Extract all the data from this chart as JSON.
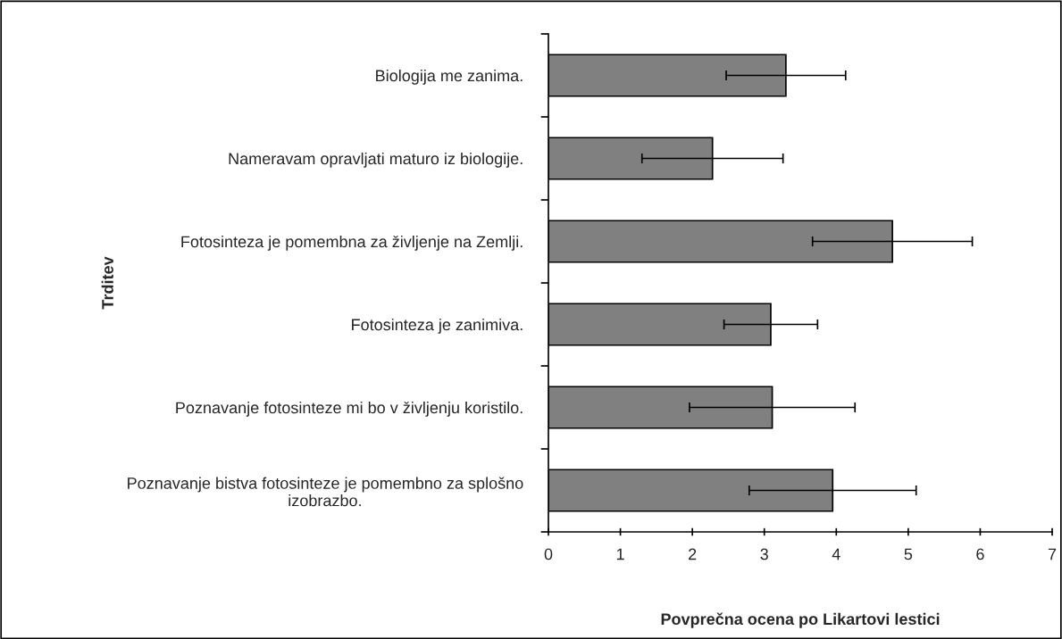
{
  "chart_data": {
    "type": "bar",
    "orientation": "horizontal",
    "categories": [
      "Biologija me zanima.",
      "Nameravam opravljati maturo iz biologije.",
      "Fotosinteza je pomembna za življenje na Zemlji.",
      "Fotosinteza je zanimiva.",
      "Poznavanje fotosinteze mi bo v življenju koristilo.",
      "Poznavanje bistva fotosinteze je pomembno za splošno\nizobrazbo."
    ],
    "values": [
      3.3,
      2.28,
      4.78,
      3.09,
      3.11,
      3.95
    ],
    "errors": [
      0.83,
      0.98,
      1.11,
      0.65,
      1.15,
      1.16
    ],
    "color": "#808080",
    "xlim": [
      0,
      7
    ],
    "xticks": [
      0,
      1,
      2,
      3,
      4,
      5,
      6,
      7
    ],
    "xlabel": "Povprečna ocena po Likartovi lestici",
    "ylabel": "Trditev",
    "grid": false,
    "legend": false
  }
}
